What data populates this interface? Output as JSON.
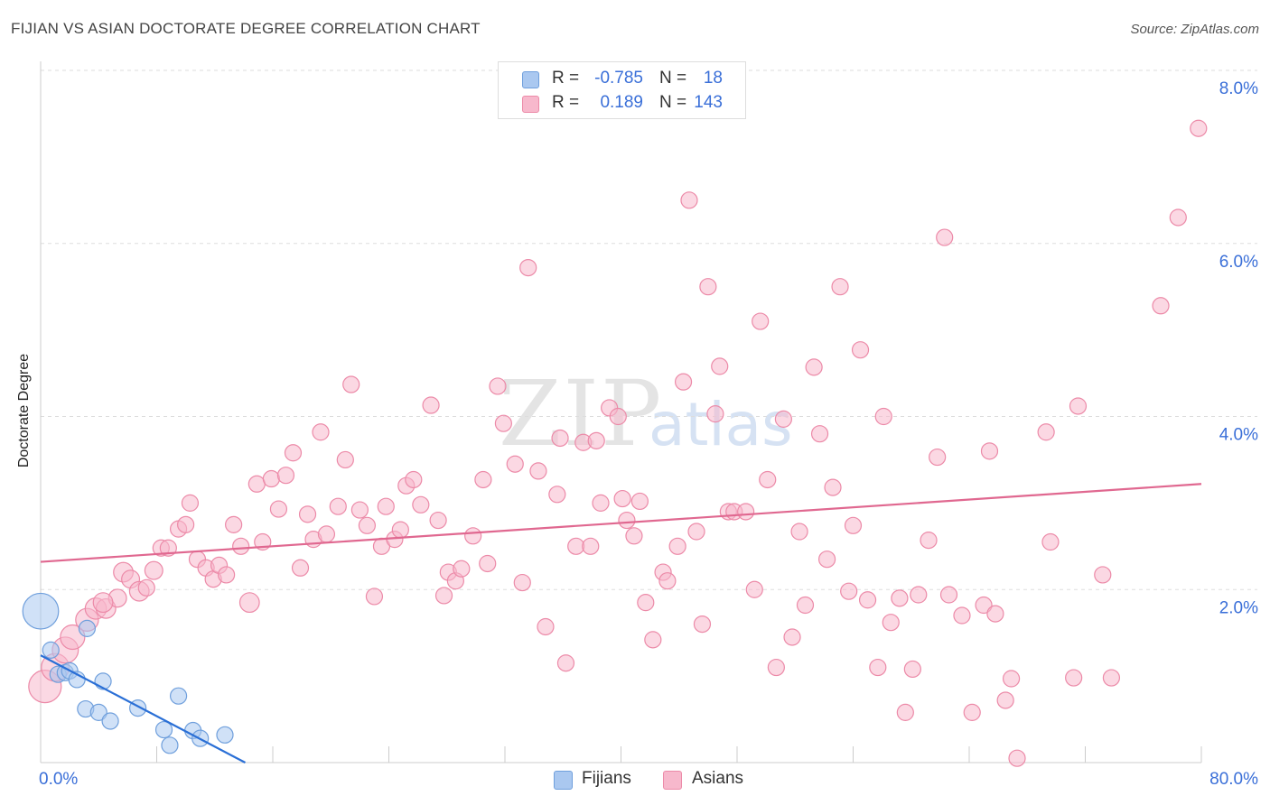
{
  "title": "FIJIAN VS ASIAN DOCTORATE DEGREE CORRELATION CHART",
  "source": "Source: ZipAtlas.com",
  "watermark": {
    "zip": "ZIP",
    "atlas": "atlas"
  },
  "colors": {
    "fijian_fill": "#aac8f0",
    "fijian_stroke": "#6f9fdc",
    "fijian_line": "#2a6fd6",
    "asian_fill": "#f7b8cc",
    "asian_stroke": "#ec8aa8",
    "asian_line": "#e06890",
    "axis_label": "#3a6fd8",
    "grid": "#dddddd"
  },
  "legend": [
    {
      "series": "fijian",
      "r_label": "R =",
      "r_value": "-0.785",
      "n_label": "N =",
      "n_value": "18"
    },
    {
      "series": "asian",
      "r_label": "R =",
      "r_value": "0.189",
      "n_label": "N =",
      "n_value": "143"
    }
  ],
  "bottom_legend": [
    "Fijians",
    "Asians"
  ],
  "chart_data": {
    "type": "scatter",
    "title": "FIJIAN VS ASIAN DOCTORATE DEGREE CORRELATION CHART",
    "xlabel": "",
    "ylabel": "Doctorate Degree",
    "xlim": [
      0,
      80
    ],
    "ylim": [
      0,
      8.0
    ],
    "x_tick_labels": [
      "0.0%",
      "80.0%"
    ],
    "y_ticks": [
      2.0,
      4.0,
      6.0,
      8.0
    ],
    "y_tick_labels": [
      "2.0%",
      "4.0%",
      "6.0%",
      "8.0%"
    ],
    "grid": true,
    "series": [
      {
        "name": "Fijians",
        "trend": {
          "x0": 0,
          "y0": 1.24,
          "x1": 14.1,
          "y1": 0.0
        },
        "points": [
          [
            0.0,
            1.75,
            2.2
          ],
          [
            0.7,
            1.3,
            1
          ],
          [
            1.2,
            1.02,
            1
          ],
          [
            1.7,
            1.04,
            1
          ],
          [
            2.0,
            1.06,
            1
          ],
          [
            2.5,
            0.96,
            1
          ],
          [
            3.2,
            1.55,
            1
          ],
          [
            3.1,
            0.62,
            1
          ],
          [
            4.0,
            0.58,
            1
          ],
          [
            4.3,
            0.94,
            1
          ],
          [
            4.8,
            0.48,
            1
          ],
          [
            6.7,
            0.63,
            1
          ],
          [
            8.5,
            0.38,
            1
          ],
          [
            8.9,
            0.2,
            1
          ],
          [
            9.5,
            0.77,
            1
          ],
          [
            10.5,
            0.37,
            1
          ],
          [
            11.0,
            0.28,
            1
          ],
          [
            12.7,
            0.32,
            1
          ]
        ]
      },
      {
        "name": "Asians",
        "trend": {
          "x0": 0,
          "y0": 2.32,
          "x1": 80,
          "y1": 3.22
        },
        "points": [
          [
            0.3,
            0.88,
            2
          ],
          [
            1.0,
            1.1,
            1.7
          ],
          [
            1.7,
            1.3,
            1.6
          ],
          [
            2.2,
            1.45,
            1.5
          ],
          [
            3.2,
            1.65,
            1.4
          ],
          [
            3.8,
            1.78,
            1.3
          ],
          [
            4.5,
            1.78,
            1.2
          ],
          [
            5.3,
            1.9,
            1.1
          ],
          [
            4.3,
            1.85,
            1.2
          ],
          [
            5.7,
            2.2,
            1.2
          ],
          [
            6.2,
            2.12,
            1.1
          ],
          [
            6.8,
            1.98,
            1.2
          ],
          [
            7.3,
            2.02,
            1
          ],
          [
            7.8,
            2.22,
            1.1
          ],
          [
            8.3,
            2.48,
            1
          ],
          [
            8.8,
            2.48,
            1
          ],
          [
            9.5,
            2.7,
            1
          ],
          [
            10.0,
            2.75,
            1
          ],
          [
            10.3,
            3.0,
            1
          ],
          [
            10.8,
            2.35,
            1
          ],
          [
            11.4,
            2.25,
            1
          ],
          [
            11.9,
            2.12,
            1
          ],
          [
            12.3,
            2.28,
            1
          ],
          [
            12.8,
            2.17,
            1
          ],
          [
            13.3,
            2.75,
            1
          ],
          [
            13.8,
            2.5,
            1
          ],
          [
            14.4,
            1.85,
            1.2
          ],
          [
            14.9,
            3.22,
            1
          ],
          [
            15.3,
            2.55,
            1
          ],
          [
            15.9,
            3.28,
            1
          ],
          [
            16.4,
            2.93,
            1
          ],
          [
            16.9,
            3.32,
            1
          ],
          [
            17.4,
            3.58,
            1
          ],
          [
            17.9,
            2.25,
            1
          ],
          [
            18.4,
            2.87,
            1
          ],
          [
            18.8,
            2.58,
            1
          ],
          [
            19.3,
            3.82,
            1
          ],
          [
            19.7,
            2.64,
            1
          ],
          [
            20.5,
            2.96,
            1
          ],
          [
            21.0,
            3.5,
            1
          ],
          [
            21.4,
            4.37,
            1
          ],
          [
            22.0,
            2.92,
            1
          ],
          [
            22.5,
            2.74,
            1
          ],
          [
            23.0,
            1.92,
            1
          ],
          [
            23.5,
            2.5,
            1
          ],
          [
            23.8,
            2.96,
            1
          ],
          [
            24.4,
            2.58,
            1
          ],
          [
            24.8,
            2.69,
            1
          ],
          [
            25.2,
            3.2,
            1
          ],
          [
            25.7,
            3.27,
            1
          ],
          [
            26.2,
            2.98,
            1
          ],
          [
            26.9,
            4.13,
            1
          ],
          [
            27.4,
            2.8,
            1
          ],
          [
            27.8,
            1.93,
            1
          ],
          [
            28.1,
            2.2,
            1
          ],
          [
            28.6,
            2.1,
            1
          ],
          [
            29.0,
            2.24,
            1
          ],
          [
            29.8,
            2.62,
            1
          ],
          [
            30.5,
            3.27,
            1
          ],
          [
            30.8,
            2.3,
            1
          ],
          [
            31.5,
            4.35,
            1
          ],
          [
            31.9,
            3.92,
            1
          ],
          [
            32.7,
            3.45,
            1
          ],
          [
            33.2,
            2.08,
            1
          ],
          [
            33.6,
            5.72,
            1
          ],
          [
            34.3,
            3.37,
            1
          ],
          [
            34.8,
            1.57,
            1
          ],
          [
            35.6,
            3.1,
            1
          ],
          [
            35.8,
            3.75,
            1
          ],
          [
            36.2,
            1.15,
            1
          ],
          [
            36.9,
            2.5,
            1
          ],
          [
            37.4,
            3.7,
            1
          ],
          [
            37.9,
            2.5,
            1
          ],
          [
            38.3,
            3.72,
            1
          ],
          [
            38.6,
            3.0,
            1
          ],
          [
            39.2,
            4.1,
            1
          ],
          [
            39.8,
            4.0,
            1
          ],
          [
            40.1,
            3.05,
            1
          ],
          [
            40.4,
            2.8,
            1
          ],
          [
            40.9,
            2.62,
            1
          ],
          [
            41.3,
            3.02,
            1
          ],
          [
            41.7,
            1.85,
            1
          ],
          [
            42.2,
            1.42,
            1
          ],
          [
            42.9,
            2.2,
            1
          ],
          [
            43.2,
            2.1,
            1
          ],
          [
            43.9,
            2.5,
            1
          ],
          [
            44.3,
            4.4,
            1
          ],
          [
            44.7,
            6.5,
            1
          ],
          [
            45.2,
            2.67,
            1
          ],
          [
            45.6,
            1.6,
            1
          ],
          [
            46.0,
            5.5,
            1
          ],
          [
            46.5,
            4.03,
            1
          ],
          [
            46.8,
            4.58,
            1
          ],
          [
            47.4,
            2.9,
            1
          ],
          [
            47.8,
            2.9,
            1
          ],
          [
            48.6,
            2.9,
            1
          ],
          [
            49.2,
            2.0,
            1
          ],
          [
            49.6,
            5.1,
            1
          ],
          [
            50.1,
            3.27,
            1
          ],
          [
            50.7,
            1.1,
            1
          ],
          [
            51.2,
            3.97,
            1
          ],
          [
            51.8,
            1.45,
            1
          ],
          [
            52.3,
            2.67,
            1
          ],
          [
            52.7,
            1.82,
            1
          ],
          [
            53.3,
            4.57,
            1
          ],
          [
            53.7,
            3.8,
            1
          ],
          [
            54.2,
            2.35,
            1
          ],
          [
            54.6,
            3.18,
            1
          ],
          [
            55.1,
            5.5,
            1
          ],
          [
            55.7,
            1.98,
            1
          ],
          [
            56.0,
            2.74,
            1
          ],
          [
            56.5,
            4.77,
            1
          ],
          [
            57.0,
            1.88,
            1
          ],
          [
            57.7,
            1.1,
            1
          ],
          [
            58.1,
            4.0,
            1
          ],
          [
            58.6,
            1.62,
            1
          ],
          [
            59.2,
            1.9,
            1
          ],
          [
            59.6,
            0.58,
            1
          ],
          [
            60.1,
            1.08,
            1
          ],
          [
            60.5,
            1.94,
            1
          ],
          [
            61.2,
            2.57,
            1
          ],
          [
            61.8,
            3.53,
            1
          ],
          [
            62.3,
            6.07,
            1
          ],
          [
            62.6,
            1.94,
            1
          ],
          [
            63.5,
            1.7,
            1
          ],
          [
            64.2,
            0.58,
            1
          ],
          [
            65.0,
            1.82,
            1
          ],
          [
            65.4,
            3.6,
            1
          ],
          [
            65.8,
            1.72,
            1
          ],
          [
            66.5,
            0.72,
            1
          ],
          [
            66.9,
            0.97,
            1
          ],
          [
            67.3,
            0.05,
            1
          ],
          [
            69.3,
            3.82,
            1
          ],
          [
            69.6,
            2.55,
            1
          ],
          [
            71.2,
            0.98,
            1
          ],
          [
            71.5,
            4.12,
            1
          ],
          [
            73.2,
            2.17,
            1
          ],
          [
            73.8,
            0.98,
            1
          ],
          [
            77.2,
            5.28,
            1
          ],
          [
            78.4,
            6.3,
            1
          ],
          [
            79.8,
            7.33,
            1
          ]
        ]
      }
    ]
  }
}
